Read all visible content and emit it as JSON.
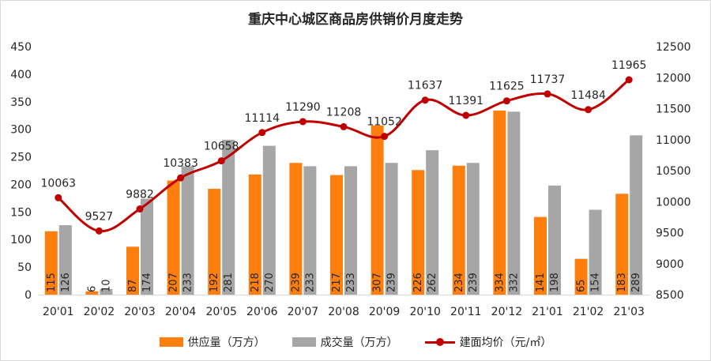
{
  "chart_data": {
    "type": "bar",
    "title": "重庆中心城区商品房供销价月度走势",
    "categories": [
      "20'01",
      "20'02",
      "20'03",
      "20'04",
      "20'05",
      "20'06",
      "20'07",
      "20'08",
      "20'09",
      "20'10",
      "20'11",
      "20'12",
      "21'01",
      "21'02",
      "21'03"
    ],
    "series": [
      {
        "name": "供应量（万方）",
        "type": "bar",
        "axis": "left",
        "color": "#ff7f0e",
        "values": [
          115,
          6,
          87,
          207,
          192,
          218,
          239,
          217,
          307,
          226,
          234,
          334,
          141,
          65,
          183
        ]
      },
      {
        "name": "成交量（万方）",
        "type": "bar",
        "axis": "left",
        "color": "#a6a6a6",
        "values": [
          126,
          10,
          174,
          233,
          281,
          270,
          233,
          233,
          239,
          262,
          239,
          332,
          198,
          154,
          289
        ]
      },
      {
        "name": "建面均价（元/㎡）",
        "type": "line",
        "axis": "right",
        "color": "#c00000",
        "values": [
          10063,
          9527,
          9882,
          10383,
          10658,
          11114,
          11290,
          11208,
          11052,
          11637,
          11391,
          11625,
          11737,
          11484,
          11965
        ]
      }
    ],
    "ylim_left": [
      0,
      450
    ],
    "yticks_left": [
      0,
      50,
      100,
      150,
      200,
      250,
      300,
      350,
      400,
      450
    ],
    "ylim_right": [
      8500,
      12500
    ],
    "yticks_right": [
      8500,
      9000,
      9500,
      10000,
      10500,
      11000,
      11500,
      12000,
      12500
    ],
    "grid": false,
    "legend_position": "bottom"
  }
}
